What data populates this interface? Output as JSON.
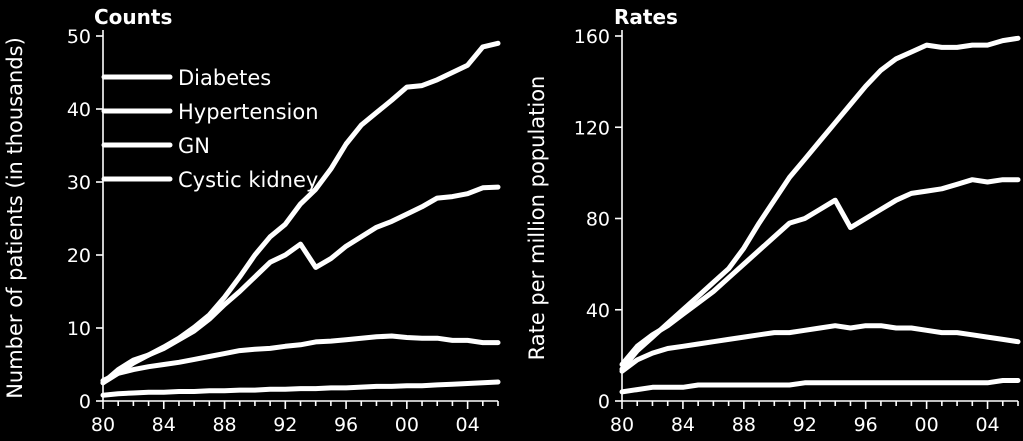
{
  "chart_data": [
    {
      "type": "line",
      "title": "Counts",
      "xlabel": "",
      "ylabel": "Number of patients (in thousands)",
      "x": [
        1980,
        1981,
        1982,
        1983,
        1984,
        1985,
        1986,
        1987,
        1988,
        1989,
        1990,
        1991,
        1992,
        1993,
        1994,
        1995,
        1996,
        1997,
        1998,
        1999,
        2000,
        2001,
        2002,
        2003,
        2004,
        2005,
        2006
      ],
      "xlim": [
        1980,
        2006
      ],
      "ylim": [
        0,
        50
      ],
      "xticks": [
        1980,
        1984,
        1988,
        1992,
        1996,
        2000,
        2004
      ],
      "xtick_labels": [
        "80",
        "84",
        "88",
        "92",
        "96",
        "00",
        "04"
      ],
      "yticks": [
        0,
        10,
        20,
        30,
        40,
        50
      ],
      "ytick_labels": [
        "0",
        "10",
        "20",
        "30",
        "40",
        "50"
      ],
      "legend_position": "top-left",
      "series": [
        {
          "name": "Diabetes",
          "values": [
            2.5,
            3.8,
            5.2,
            6.3,
            7.4,
            8.6,
            10.1,
            11.8,
            14.2,
            17.0,
            20.0,
            22.5,
            24.2,
            27.0,
            29.0,
            31.8,
            35.2,
            37.8,
            39.5,
            41.2,
            43.0,
            43.2,
            44.0,
            45.0,
            46.0,
            48.5,
            49.0
          ]
        },
        {
          "name": "Hypertension",
          "values": [
            2.5,
            4.3,
            5.6,
            6.3,
            7.2,
            8.4,
            9.6,
            11.2,
            13.2,
            15.0,
            17.0,
            19.0,
            20.0,
            21.5,
            18.3,
            19.5,
            21.2,
            22.5,
            23.8,
            24.6,
            25.6,
            26.6,
            27.8,
            28.0,
            28.4,
            29.2,
            29.3
          ]
        },
        {
          "name": "GN",
          "values": [
            2.8,
            3.8,
            4.3,
            4.7,
            5.0,
            5.3,
            5.7,
            6.1,
            6.5,
            6.9,
            7.1,
            7.2,
            7.5,
            7.7,
            8.1,
            8.2,
            8.4,
            8.6,
            8.8,
            8.9,
            8.7,
            8.6,
            8.6,
            8.3,
            8.3,
            8.0,
            8.0
          ]
        },
        {
          "name": "Cystic kidney",
          "values": [
            0.8,
            1.0,
            1.1,
            1.2,
            1.2,
            1.3,
            1.3,
            1.4,
            1.4,
            1.5,
            1.5,
            1.6,
            1.6,
            1.7,
            1.7,
            1.8,
            1.8,
            1.9,
            2.0,
            2.0,
            2.1,
            2.1,
            2.2,
            2.3,
            2.4,
            2.5,
            2.6
          ]
        }
      ]
    },
    {
      "type": "line",
      "title": "Rates",
      "xlabel": "",
      "ylabel": "Rate per million population",
      "x": [
        1980,
        1981,
        1982,
        1983,
        1984,
        1985,
        1986,
        1987,
        1988,
        1989,
        1990,
        1991,
        1992,
        1993,
        1994,
        1995,
        1996,
        1997,
        1998,
        1999,
        2000,
        2001,
        2002,
        2003,
        2004,
        2005,
        2006
      ],
      "xlim": [
        1980,
        2006
      ],
      "ylim": [
        0,
        160
      ],
      "xticks": [
        1980,
        1984,
        1988,
        1992,
        1996,
        2000,
        2004
      ],
      "xtick_labels": [
        "80",
        "84",
        "88",
        "92",
        "96",
        "00",
        "04"
      ],
      "yticks": [
        0,
        40,
        80,
        120,
        160
      ],
      "ytick_labels": [
        "0",
        "40",
        "80",
        "120",
        "160"
      ],
      "series": [
        {
          "name": "Diabetes",
          "values": [
            14,
            22,
            28,
            34,
            40,
            46,
            52,
            58,
            67,
            78,
            88,
            98,
            106,
            114,
            122,
            130,
            138,
            145,
            150,
            153,
            156,
            155,
            155,
            156,
            156,
            158,
            159
          ]
        },
        {
          "name": "Hypertension",
          "values": [
            16,
            24,
            29,
            33,
            38,
            43,
            48,
            54,
            60,
            66,
            72,
            78,
            80,
            84,
            88,
            76,
            80,
            84,
            88,
            91,
            92,
            93,
            95,
            97,
            96,
            97,
            97
          ]
        },
        {
          "name": "GN",
          "values": [
            13,
            18,
            21,
            23,
            24,
            25,
            26,
            27,
            28,
            29,
            30,
            30,
            31,
            32,
            33,
            32,
            33,
            33,
            32,
            32,
            31,
            30,
            30,
            29,
            28,
            27,
            26
          ]
        },
        {
          "name": "Cystic kidney",
          "values": [
            4,
            5,
            6,
            6,
            6,
            7,
            7,
            7,
            7,
            7,
            7,
            7,
            8,
            8,
            8,
            8,
            8,
            8,
            8,
            8,
            8,
            8,
            8,
            8,
            8,
            9,
            9
          ]
        }
      ]
    }
  ]
}
